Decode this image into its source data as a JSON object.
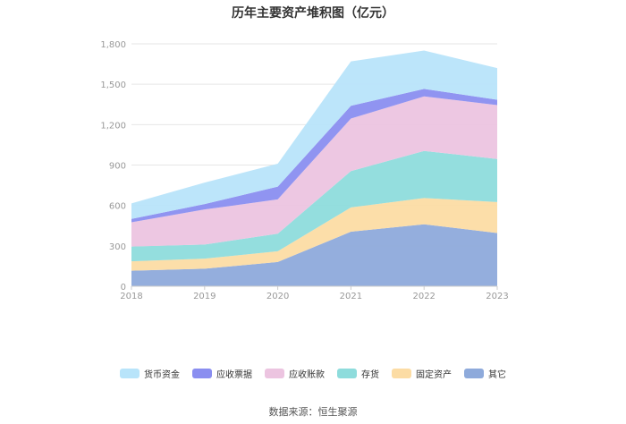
{
  "chart_data": {
    "type": "area",
    "stacked": true,
    "title": "历年主要资产堆积图（亿元）",
    "x": [
      "2018",
      "2019",
      "2020",
      "2021",
      "2022",
      "2023"
    ],
    "ylim": [
      0,
      1800
    ],
    "yticks": [
      0,
      300,
      600,
      900,
      1200,
      1500,
      1800
    ],
    "ytick_labels": [
      "0",
      "300",
      "600",
      "900",
      "1,200",
      "1,500",
      "1,800"
    ],
    "grid": true,
    "legend_position": "bottom",
    "series": [
      {
        "name": "其它",
        "color": "#8eaadb",
        "values": [
          115,
          130,
          180,
          405,
          460,
          395
        ]
      },
      {
        "name": "固定资产",
        "color": "#fcdca4",
        "values": [
          70,
          75,
          80,
          180,
          195,
          230
        ]
      },
      {
        "name": "存货",
        "color": "#8edcdc",
        "values": [
          110,
          105,
          130,
          270,
          350,
          320
        ]
      },
      {
        "name": "应收账款",
        "color": "#ecc4e0",
        "values": [
          180,
          260,
          255,
          390,
          405,
          400
        ]
      },
      {
        "name": "应收票据",
        "color": "#8a8ef0",
        "values": [
          25,
          40,
          95,
          95,
          55,
          40
        ]
      },
      {
        "name": "货币资金",
        "color": "#b8e4fa",
        "values": [
          115,
          160,
          170,
          330,
          285,
          235
        ]
      }
    ],
    "legend_order": [
      "货币资金",
      "应收票据",
      "应收账款",
      "存货",
      "固定资产",
      "其它"
    ]
  },
  "footer": {
    "source": "数据来源：恒生聚源"
  }
}
